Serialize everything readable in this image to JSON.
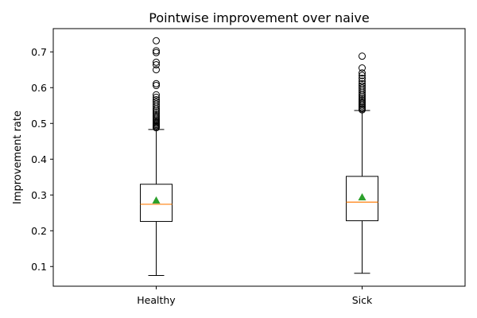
{
  "chart_data": {
    "type": "box",
    "title": "Pointwise improvement over naive",
    "xlabel": "",
    "ylabel": "Improvement rate",
    "ylim": [
      0.045,
      0.765
    ],
    "yticks": [
      0.1,
      0.2,
      0.3,
      0.4,
      0.5,
      0.6,
      0.7
    ],
    "ytick_labels": [
      "0.1",
      "0.2",
      "0.3",
      "0.4",
      "0.5",
      "0.6",
      "0.7"
    ],
    "categories": [
      "Healthy",
      "Sick"
    ],
    "grid": false,
    "colors": {
      "box": "#000000",
      "median": "#ff7f0e",
      "mean": "#2ca02c",
      "flier": "#000000"
    },
    "boxes": [
      {
        "label": "Healthy",
        "whisker_low": 0.075,
        "q1": 0.226,
        "median": 0.274,
        "q3": 0.33,
        "whisker_high": 0.483,
        "mean": 0.285,
        "fliers": [
          0.488,
          0.491,
          0.494,
          0.497,
          0.5,
          0.503,
          0.507,
          0.51,
          0.514,
          0.518,
          0.522,
          0.527,
          0.532,
          0.537,
          0.542,
          0.548,
          0.554,
          0.56,
          0.566,
          0.573,
          0.58,
          0.606,
          0.611,
          0.65,
          0.664,
          0.671,
          0.698,
          0.703,
          0.731
        ]
      },
      {
        "label": "Sick",
        "whisker_low": 0.081,
        "q1": 0.228,
        "median": 0.28,
        "q3": 0.352,
        "whisker_high": 0.536,
        "mean": 0.294,
        "fliers": [
          0.538,
          0.541,
          0.545,
          0.549,
          0.553,
          0.557,
          0.561,
          0.566,
          0.571,
          0.576,
          0.581,
          0.587,
          0.593,
          0.599,
          0.605,
          0.611,
          0.618,
          0.626,
          0.634,
          0.641,
          0.655,
          0.688
        ]
      }
    ]
  }
}
